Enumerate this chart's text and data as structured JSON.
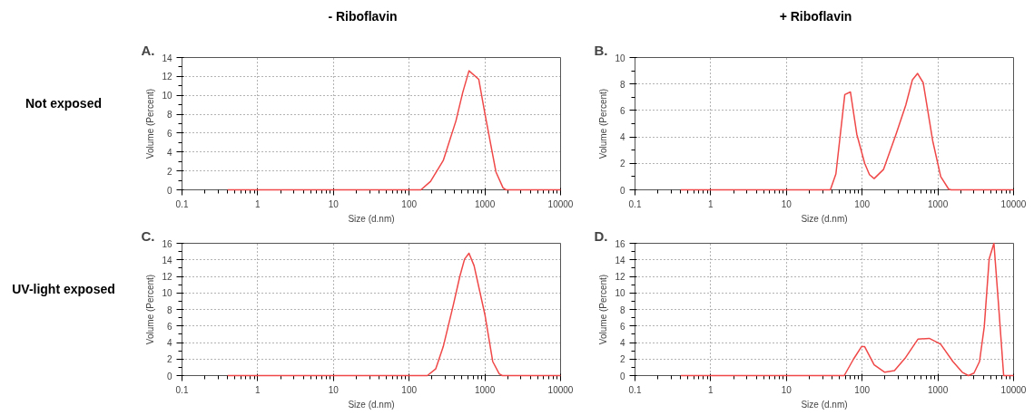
{
  "chart_data": [
    {
      "type": "line",
      "title": "A.",
      "xlabel": "Size (d.nm)",
      "ylabel": "Volume (Percent)",
      "annotations": [
        "- Riboflavin",
        "Not exposed"
      ],
      "log": "x",
      "color": "#f04848",
      "grid": true,
      "x": [
        0.4,
        143,
        192,
        282,
        415,
        510,
        617,
        830,
        1000,
        1400,
        1740,
        1900,
        10000
      ],
      "values": [
        0,
        0,
        0.9,
        3.1,
        7.3,
        10.3,
        12.6,
        11.7,
        8.1,
        1.9,
        0.2,
        0,
        0
      ],
      "xlim": [
        0.1,
        10000
      ],
      "xticks": [
        0.1,
        1,
        10,
        100,
        1000,
        10000
      ],
      "ylim": [
        0,
        14
      ],
      "yticks": [
        0,
        2,
        4,
        6,
        8,
        10,
        12,
        14
      ]
    },
    {
      "type": "line",
      "title": "B.",
      "xlabel": "Size (d.nm)",
      "ylabel": "Volume (Percent)",
      "annotations": [
        "+ Riboflavin"
      ],
      "log": "x",
      "color": "#f04848",
      "grid": true,
      "x": [
        0.4,
        38,
        45,
        59,
        70,
        85,
        108,
        125,
        144,
        192,
        280,
        377,
        460,
        540,
        640,
        855,
        1090,
        1390,
        1500,
        10000
      ],
      "values": [
        0,
        0,
        1.2,
        7.2,
        7.4,
        4.2,
        2.0,
        1.15,
        0.85,
        1.55,
        4.2,
        6.4,
        8.3,
        8.8,
        8.1,
        3.7,
        1.0,
        0.05,
        0,
        0
      ],
      "xlim": [
        0.1,
        10000
      ],
      "xticks": [
        0.1,
        1,
        10,
        100,
        1000,
        10000
      ],
      "ylim": [
        0,
        10
      ],
      "yticks": [
        0,
        2,
        4,
        6,
        8,
        10
      ]
    },
    {
      "type": "line",
      "title": "C.",
      "xlabel": "Size (d.nm)",
      "ylabel": "Volume (Percent)",
      "annotations": [
        "UV-light exposed"
      ],
      "log": "x",
      "color": "#f04848",
      "grid": true,
      "x": [
        0.4,
        174,
        224,
        282,
        380,
        467,
        540,
        617,
        720,
        1000,
        1270,
        1550,
        1700,
        10000
      ],
      "values": [
        0,
        0,
        0.8,
        3.5,
        8.4,
        12.0,
        14.1,
        14.8,
        13.3,
        7.4,
        1.7,
        0.2,
        0,
        0
      ],
      "xlim": [
        0.1,
        10000
      ],
      "xticks": [
        0.1,
        1,
        10,
        100,
        1000,
        10000
      ],
      "ylim": [
        0,
        16
      ],
      "yticks": [
        0,
        2,
        4,
        6,
        8,
        10,
        12,
        14,
        16
      ]
    },
    {
      "type": "line",
      "title": "D.",
      "xlabel": "Size (d.nm)",
      "ylabel": "Volume (Percent)",
      "log": "x",
      "color": "#f04848",
      "grid": true,
      "x": [
        0.4,
        58,
        77,
        98,
        108,
        144,
        199,
        267,
        376,
        545,
        770,
        1090,
        1580,
        2100,
        2530,
        3000,
        3550,
        4100,
        4760,
        5500,
        6350,
        7400,
        10000
      ],
      "values": [
        0,
        0,
        2.0,
        3.5,
        3.5,
        1.3,
        0.4,
        0.6,
        2.2,
        4.4,
        4.5,
        3.8,
        1.7,
        0.4,
        0,
        0.3,
        1.7,
        5.9,
        14.1,
        16.0,
        8.4,
        0,
        0
      ],
      "xlim": [
        0.1,
        10000
      ],
      "xticks": [
        0.1,
        1,
        10,
        100,
        1000,
        10000
      ],
      "ylim": [
        0,
        16
      ],
      "yticks": [
        0,
        2,
        4,
        6,
        8,
        10,
        12,
        14,
        16
      ]
    }
  ]
}
